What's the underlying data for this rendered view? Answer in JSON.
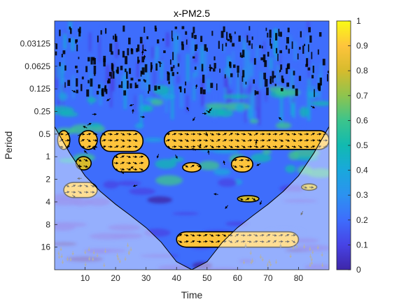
{
  "chart_data": {
    "type": "heatmap",
    "title": "x-PM2.5",
    "xlabel": "Time",
    "ylabel": "Period",
    "xlim": [
      0,
      90
    ],
    "x_ticks": [
      10,
      20,
      30,
      40,
      50,
      60,
      70,
      80
    ],
    "y_scale": "log2",
    "y_direction": "reversed",
    "ylim": [
      0.0156,
      32
    ],
    "y_ticks": [
      0.03125,
      0.0625,
      0.125,
      0.25,
      0.5,
      1,
      2,
      4,
      8,
      16
    ],
    "y_tick_labels": [
      "0.03125",
      "0.0625",
      "0.125",
      "0.25",
      "0.5",
      "1",
      "2",
      "4",
      "8",
      "16"
    ],
    "colorbar": {
      "range": [
        0,
        1
      ],
      "ticks": [
        0,
        0.1,
        0.2,
        0.3,
        0.4,
        0.5,
        0.6,
        0.7,
        0.8,
        0.9,
        1
      ],
      "tick_labels": [
        "0",
        "0.1",
        "0.2",
        "0.3",
        "0.4",
        "0.5",
        "0.6",
        "0.7",
        "0.8",
        "0.9",
        "1"
      ],
      "colormap": [
        "#3e26a8",
        "#4743e5",
        "#3e6dfc",
        "#2c92f0",
        "#19a8dc",
        "#11bab0",
        "#3cc48c",
        "#8ec44e",
        "#d6bb2d",
        "#fec43c",
        "#f9fb15"
      ]
    },
    "cone_of_influence": {
      "x": [
        0,
        5,
        10,
        15,
        20,
        25,
        30,
        35,
        40,
        45,
        50,
        55,
        60,
        65,
        70,
        75,
        80,
        85,
        90
      ],
      "period": [
        0.4,
        0.9,
        1.8,
        2.9,
        4.3,
        6.1,
        8.8,
        13.8,
        25,
        32,
        25,
        13.8,
        8.8,
        6.1,
        4.3,
        2.9,
        1.8,
        0.9,
        0.4
      ]
    },
    "significant_regions": [
      {
        "x": [
          1,
          5
        ],
        "period": [
          0.45,
          0.8
        ],
        "coherence": 0.9
      },
      {
        "x": [
          8,
          14
        ],
        "period": [
          0.45,
          0.8
        ],
        "coherence": 0.9
      },
      {
        "x": [
          15,
          29
        ],
        "period": [
          0.45,
          0.85
        ],
        "coherence": 0.9
      },
      {
        "x": [
          36,
          90
        ],
        "period": [
          0.45,
          0.8
        ],
        "coherence": 0.92
      },
      {
        "x": [
          7,
          12
        ],
        "period": [
          1.0,
          1.5
        ],
        "coherence": 0.8
      },
      {
        "x": [
          19,
          31
        ],
        "period": [
          0.9,
          1.6
        ],
        "coherence": 0.85
      },
      {
        "x": [
          42,
          48
        ],
        "period": [
          1.2,
          1.6
        ],
        "coherence": 0.85
      },
      {
        "x": [
          58,
          65
        ],
        "period": [
          1.0,
          1.6
        ],
        "coherence": 0.85
      },
      {
        "x": [
          3,
          14
        ],
        "period": [
          2.2,
          3.5
        ],
        "coherence": 0.85
      },
      {
        "x": [
          60,
          67
        ],
        "period": [
          3.3,
          4.0
        ],
        "coherence": 0.8
      },
      {
        "x": [
          81,
          86
        ],
        "period": [
          2.3,
          2.8
        ],
        "coherence": 0.8
      },
      {
        "x": [
          40,
          80
        ],
        "period": [
          10,
          16
        ],
        "coherence": 0.9
      }
    ]
  }
}
